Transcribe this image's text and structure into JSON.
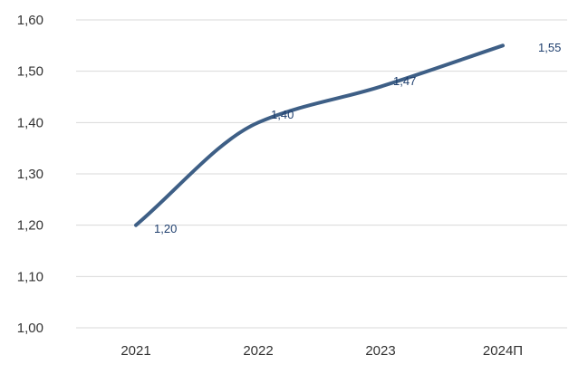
{
  "chart_data": {
    "type": "line",
    "categories": [
      "2021",
      "2022",
      "2023",
      "2024П"
    ],
    "series": [
      {
        "values": [
          1.2,
          1.4,
          1.47,
          1.55
        ],
        "labels": [
          "1,20",
          "1,40",
          "1,47",
          "1,55"
        ],
        "color": "#3e5f86"
      }
    ],
    "title": "",
    "xlabel": "",
    "ylabel": "",
    "ylim": [
      1.0,
      1.6
    ],
    "yticks": [
      1.0,
      1.1,
      1.2,
      1.3,
      1.4,
      1.5,
      1.6
    ],
    "ytick_labels": [
      "1,00",
      "1,10",
      "1,20",
      "1,30",
      "1,40",
      "1,50",
      "1,60"
    ],
    "grid": true,
    "grid_color": "#d9d9d9",
    "smooth": true,
    "legend": "none"
  }
}
